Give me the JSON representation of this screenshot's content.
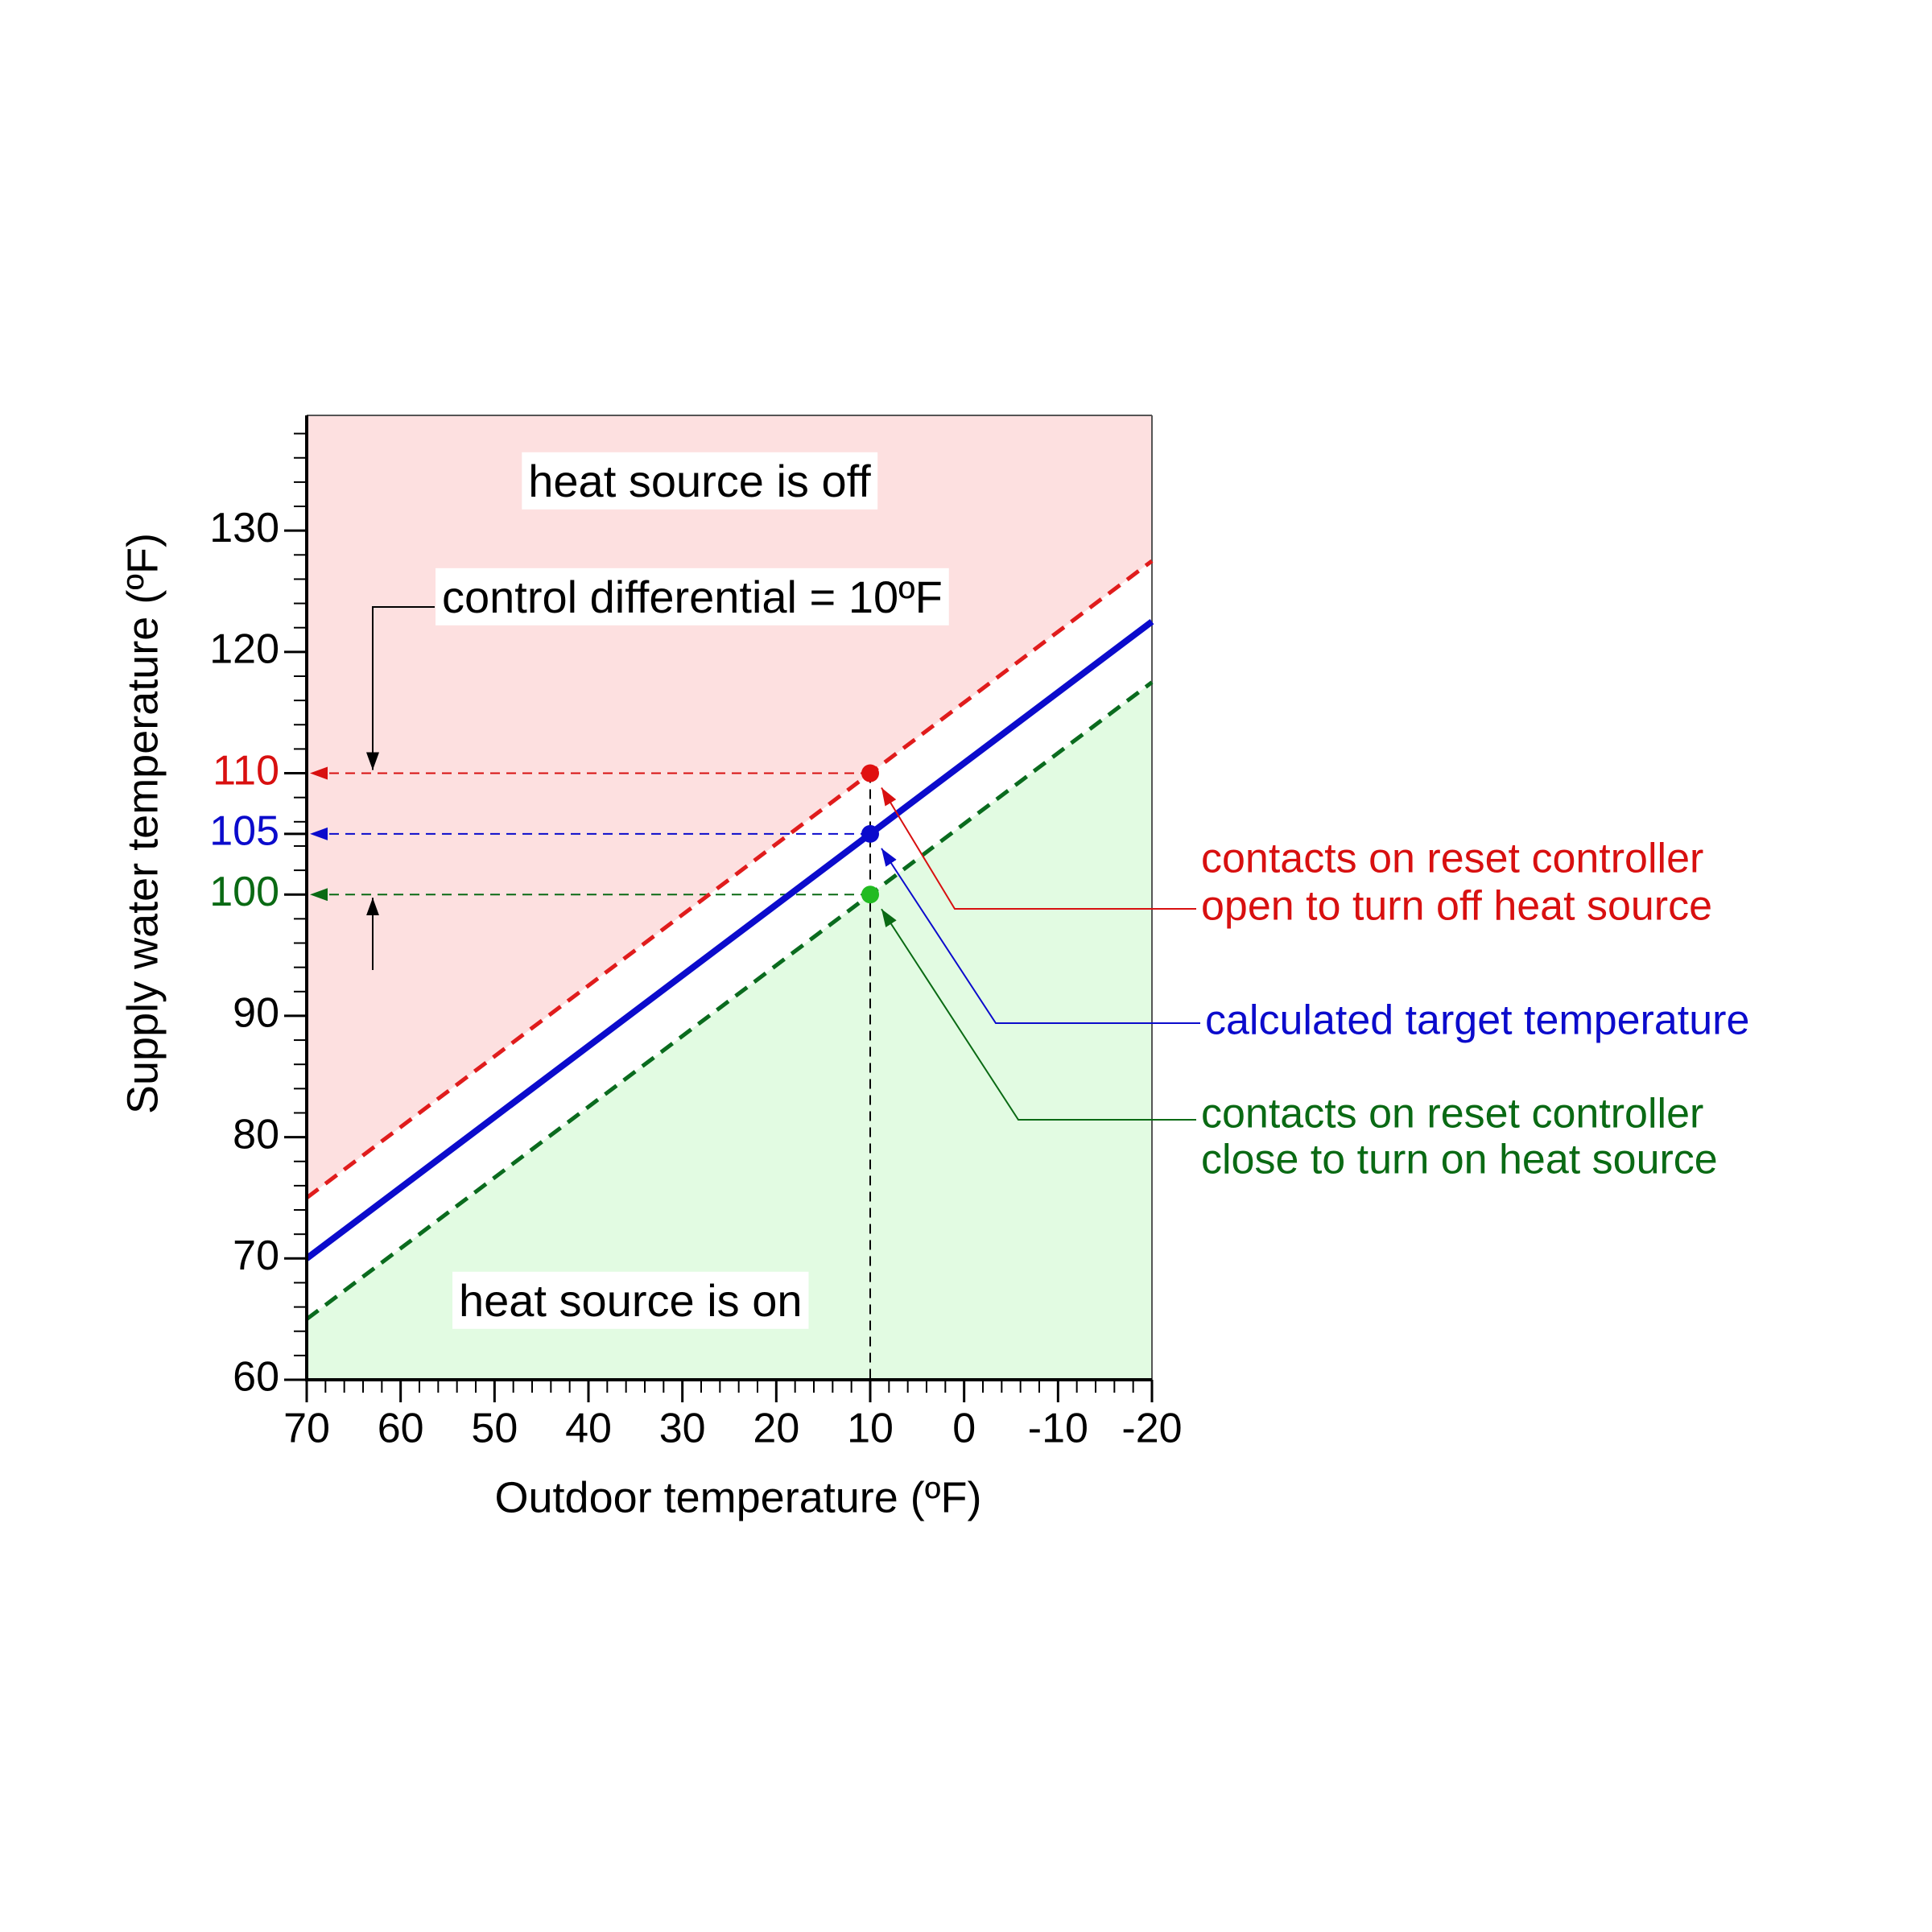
{
  "chart_data": {
    "type": "line",
    "xlabel": "Outdoor temperature (ºF)",
    "ylabel": "Supply water temperature (ºF)",
    "xlim": [
      70,
      -20
    ],
    "ylim": [
      60,
      139.5
    ],
    "xticks": [
      70,
      60,
      50,
      40,
      30,
      20,
      10,
      0,
      -10,
      -20
    ],
    "yticks": [
      60,
      70,
      80,
      90,
      100,
      105,
      110,
      120,
      130
    ],
    "ytick_colors": [
      "#000000",
      "#000000",
      "#000000",
      "#000000",
      "#0a6a14",
      "#0b0bcc",
      "#d81010",
      "#000000",
      "#000000"
    ],
    "xminorticks": [
      68,
      66,
      64,
      62,
      58,
      56,
      54,
      52,
      48,
      46,
      44,
      42,
      38,
      36,
      34,
      32,
      28,
      26,
      24,
      22,
      18,
      16,
      14,
      12,
      8,
      6,
      4,
      2,
      -2,
      -4,
      -6,
      -8,
      -12,
      -14,
      -16,
      -18
    ],
    "yminorticks": [
      62,
      64,
      66,
      68,
      72,
      74,
      76,
      78,
      82,
      84,
      86,
      88,
      92,
      94,
      96,
      98,
      102,
      104,
      106,
      108,
      112,
      114,
      116,
      118,
      122,
      124,
      126,
      128,
      132,
      134,
      136,
      138
    ],
    "series": [
      {
        "color": "#e01c1c",
        "dashed": true,
        "fill": "above",
        "fill_color": "#fde0e0",
        "x": [
          70,
          -20
        ],
        "values": [
          75,
          127.5
        ]
      },
      {
        "color": "#0a6b1e",
        "dashed": true,
        "fill": "below",
        "fill_color": "#e2fbe2",
        "x": [
          70,
          -20
        ],
        "values": [
          65,
          117.5
        ]
      },
      {
        "color": "#0b0bcc",
        "dashed": false,
        "x": [
          70,
          -20
        ],
        "values": [
          70,
          122.5
        ]
      }
    ],
    "points": [
      {
        "x": 10,
        "y": 110,
        "color": "#e01010",
        "guide_color": "#d81010"
      },
      {
        "x": 10,
        "y": 105,
        "color": "#0b0bcc",
        "guide_color": "#0b0bcc"
      },
      {
        "x": 10,
        "y": 100,
        "color": "#22bb22",
        "guide_color": "#0a6a14"
      }
    ],
    "annotations": [
      {
        "text": "heat source is off",
        "color": "#000000",
        "box": true
      },
      {
        "text": "control differential = 10ºF",
        "color": "#000000",
        "box": true
      },
      {
        "text": "heat source is on",
        "color": "#000000",
        "box": true
      },
      {
        "lines": [
          "contacts on reset controller",
          "open to turn off heat source"
        ],
        "color": "#d81010",
        "box": false
      },
      {
        "lines": [
          "calculated target temperature"
        ],
        "color": "#0b0bcc",
        "box": false
      },
      {
        "lines": [
          "contacts on reset controller",
          "close to turn on heat source"
        ],
        "color": "#0a6a14",
        "box": false
      }
    ]
  }
}
